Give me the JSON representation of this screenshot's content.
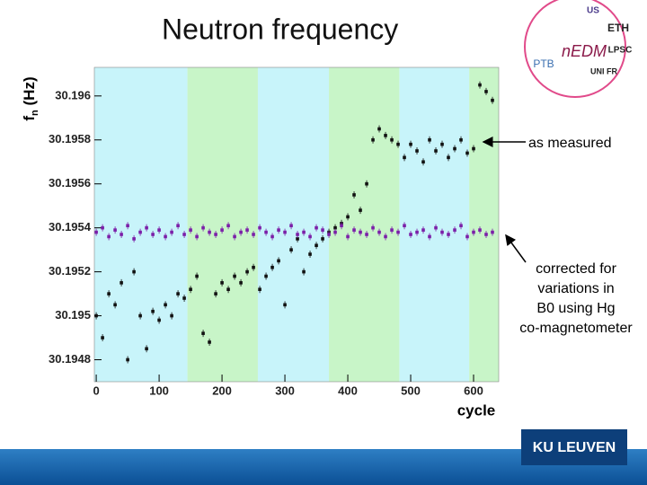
{
  "chart_data": {
    "type": "scatter",
    "title": "Neutron frequency",
    "ylabel": [
      "f",
      "n",
      " (Hz)"
    ],
    "xlabel": "cycle",
    "xlim": [
      -3,
      640
    ],
    "ylim": [
      30.1947,
      30.19613
    ],
    "xticks": [
      0,
      100,
      200,
      300,
      400,
      500,
      600
    ],
    "yticks": [
      30.1948,
      30.195,
      30.1952,
      30.1954,
      30.1956,
      30.1958,
      30.196
    ],
    "bands": [
      {
        "start": -3,
        "end": 145,
        "color": "#c8f4fa"
      },
      {
        "start": 145,
        "end": 257,
        "color": "#c8f5c8"
      },
      {
        "start": 257,
        "end": 370,
        "color": "#c8f4fa"
      },
      {
        "start": 370,
        "end": 482,
        "color": "#c8f5c8"
      },
      {
        "start": 482,
        "end": 593,
        "color": "#c8f4fa"
      },
      {
        "start": 593,
        "end": 640,
        "color": "#c8f5c8"
      }
    ],
    "x": [
      0,
      10,
      20,
      30,
      40,
      50,
      60,
      70,
      80,
      90,
      100,
      110,
      120,
      130,
      140,
      150,
      160,
      170,
      180,
      190,
      200,
      210,
      220,
      230,
      240,
      250,
      260,
      270,
      280,
      290,
      300,
      310,
      320,
      330,
      340,
      350,
      360,
      370,
      380,
      390,
      400,
      410,
      420,
      430,
      440,
      450,
      460,
      470,
      480,
      490,
      500,
      510,
      520,
      530,
      540,
      550,
      560,
      570,
      580,
      590,
      600,
      610,
      620,
      630
    ],
    "series": [
      {
        "name": "as measured",
        "color": "#111111",
        "values": [
          30.195,
          30.1949,
          30.1951,
          30.19505,
          30.19515,
          30.1948,
          30.1952,
          30.195,
          30.19485,
          30.19502,
          30.19498,
          30.19505,
          30.195,
          30.1951,
          30.19508,
          30.19512,
          30.19518,
          30.19492,
          30.19488,
          30.1951,
          30.19515,
          30.19512,
          30.19518,
          30.19515,
          30.1952,
          30.19522,
          30.19512,
          30.19518,
          30.19522,
          30.19525,
          30.19505,
          30.1953,
          30.19535,
          30.1952,
          30.19528,
          30.19532,
          30.19535,
          30.19538,
          30.1954,
          30.19542,
          30.19545,
          30.19555,
          30.19548,
          30.1956,
          30.1958,
          30.19585,
          30.19582,
          30.1958,
          30.19578,
          30.19572,
          30.19578,
          30.19575,
          30.1957,
          30.1958,
          30.19575,
          30.19578,
          30.19572,
          30.19576,
          30.1958,
          30.19574,
          30.19576,
          30.19605,
          30.19602,
          30.19598
        ]
      },
      {
        "name": "corrected",
        "color": "#7b1fa8",
        "values": [
          30.19538,
          30.1954,
          30.19536,
          30.19539,
          30.19537,
          30.19541,
          30.19535,
          30.19538,
          30.1954,
          30.19537,
          30.19539,
          30.19536,
          30.19538,
          30.19541,
          30.19537,
          30.19539,
          30.19536,
          30.1954,
          30.19538,
          30.19537,
          30.19539,
          30.19541,
          30.19536,
          30.19538,
          30.19539,
          30.19537,
          30.1954,
          30.19538,
          30.19536,
          30.19539,
          30.19538,
          30.19541,
          30.19537,
          30.19538,
          30.19536,
          30.1954,
          30.19539,
          30.19537,
          30.19538,
          30.19541,
          30.19536,
          30.19539,
          30.19538,
          30.19537,
          30.1954,
          30.19538,
          30.19536,
          30.19539,
          30.19538,
          30.19541,
          30.19537,
          30.19538,
          30.19539,
          30.19536,
          30.1954,
          30.19538,
          30.19537,
          30.19539,
          30.19541,
          30.19536,
          30.19538,
          30.19539,
          30.19537,
          30.19538
        ]
      }
    ],
    "annotations": [
      {
        "lines": [
          "as measured"
        ]
      },
      {
        "lines": [
          "corrected for",
          "variations in",
          "B0 using Hg",
          "co-magnetometer"
        ]
      }
    ]
  },
  "slide": {
    "footer_logo": "KU LEUVEN",
    "badge_labels": [
      "nEDM",
      "ETH",
      "PTB",
      "LPSC",
      "US",
      "UNI FR"
    ]
  }
}
